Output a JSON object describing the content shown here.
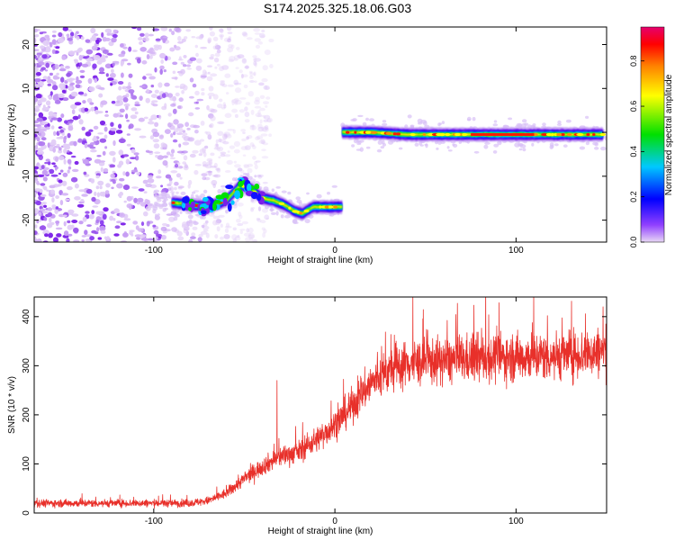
{
  "title": "S174.2025.325.18.06.G03",
  "chart_data": [
    {
      "type": "heatmap",
      "xlabel": "Height of straight line (km)",
      "ylabel": "Frequency (Hz)",
      "xlim": [
        -166,
        150
      ],
      "ylim": [
        -25,
        24
      ],
      "xticks": [
        -100,
        0,
        100
      ],
      "xtick_labels": [
        "-100",
        "0",
        "100"
      ],
      "yticks": [
        -20,
        -10,
        0,
        10,
        20
      ],
      "ytick_labels": [
        "-20",
        "-10",
        "0",
        "10",
        "20"
      ],
      "noise_region_x": [
        -166,
        -55
      ],
      "signal_tracks": [
        {
          "name": "ionospheric-trace",
          "x": [
            -90,
            -80,
            -70,
            -60,
            -52,
            -46,
            -40,
            -34,
            -28,
            -22,
            -18,
            -12,
            -6,
            0,
            4
          ],
          "y": [
            -16,
            -16.5,
            -17,
            -15.5,
            -12,
            -13,
            -15,
            -15.5,
            -16.5,
            -18,
            -18.5,
            -17,
            -17,
            -17,
            -17
          ]
        },
        {
          "name": "direct-trace",
          "x": [
            4,
            20,
            40,
            60,
            80,
            100,
            120,
            140,
            148
          ],
          "y": [
            0,
            0,
            -0.5,
            -0.5,
            -0.5,
            -0.5,
            -0.5,
            -0.5,
            -0.5
          ]
        }
      ],
      "colorbar": {
        "label": "Normalized spectral amplitude",
        "range": [
          0,
          0.95
        ],
        "ticks": [
          0.0,
          0.2,
          0.4,
          0.6,
          0.8
        ],
        "tick_labels": [
          "0.0",
          "0.2",
          "0.4",
          "0.6",
          "0.8"
        ],
        "colors": [
          "#e8d8f5",
          "#8000ff",
          "#0000ff",
          "#00c8ff",
          "#00ff00",
          "#ffff00",
          "#ff8000",
          "#ff0000",
          "#e6006e"
        ]
      }
    },
    {
      "type": "line",
      "xlabel": "Height of straight line (km)",
      "ylabel": "SNR (10 * v/v)",
      "xlim": [
        -166,
        150
      ],
      "ylim": [
        0,
        440
      ],
      "xticks": [
        -100,
        0,
        100
      ],
      "xtick_labels": [
        "-100",
        "0",
        "100"
      ],
      "yticks": [
        0,
        100,
        200,
        300,
        400
      ],
      "ytick_labels": [
        "0",
        "100",
        "200",
        "300",
        "400"
      ],
      "series": [
        {
          "name": "SNR",
          "color": "#e8302a",
          "envelope_x": [
            -166,
            -80,
            -70,
            -60,
            -50,
            -40,
            -30,
            -20,
            -10,
            0,
            10,
            20,
            30,
            40,
            60,
            80,
            100,
            120,
            140,
            150
          ],
          "envelope_y": [
            20,
            20,
            25,
            40,
            70,
            95,
            115,
            125,
            150,
            180,
            220,
            265,
            290,
            305,
            310,
            315,
            318,
            320,
            325,
            330
          ],
          "spikes": [
            {
              "x": -32,
              "y": 270
            },
            {
              "x": 148,
              "y": 420
            }
          ]
        }
      ]
    }
  ]
}
